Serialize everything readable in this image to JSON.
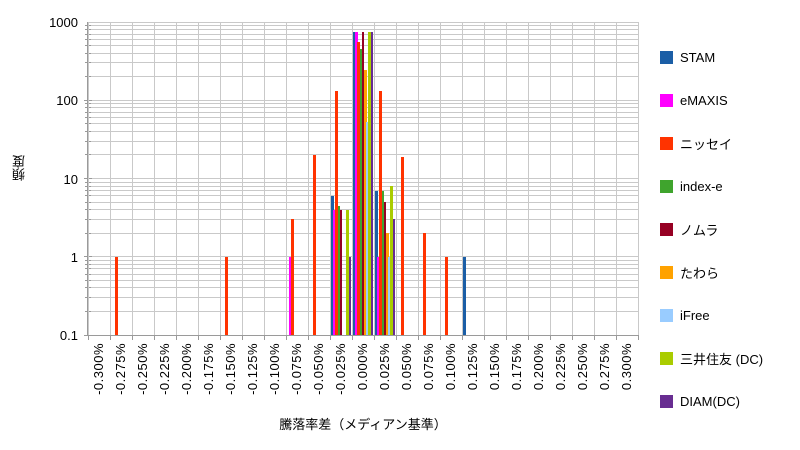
{
  "chart_data": {
    "type": "bar",
    "subtype": "histogram",
    "scale_y": "log10",
    "title": "",
    "xlabel": "騰落率差（メディアン基準）",
    "ylabel": "頻度",
    "ylim": [
      0.1,
      1000
    ],
    "y_ticks": [
      "1000",
      "100",
      "10",
      "1",
      "0.1"
    ],
    "grid": "major and minor log gridlines, vertical category gridlines",
    "legend_position": "right",
    "categories": [
      "-0.300%",
      "-0.275%",
      "-0.250%",
      "-0.225%",
      "-0.200%",
      "-0.175%",
      "-0.150%",
      "-0.125%",
      "-0.100%",
      "-0.075%",
      "-0.050%",
      "-0.025%",
      "0.000%",
      "0.025%",
      "0.050%",
      "0.075%",
      "0.100%",
      "0.125%",
      "0.150%",
      "0.175%",
      "0.200%",
      "0.225%",
      "0.250%",
      "0.275%",
      "0.300%"
    ],
    "series": [
      {
        "name": "STAM",
        "color": "#1B5EA6",
        "values": [
          0,
          0,
          0,
          0,
          0,
          0,
          0,
          0,
          0,
          0,
          0,
          6,
          750,
          7,
          0,
          0,
          0,
          1,
          0,
          0,
          0,
          0,
          0,
          0,
          0
        ]
      },
      {
        "name": "eMAXIS",
        "color": "#FF00FF",
        "values": [
          0,
          0,
          0,
          0,
          0,
          0,
          0,
          0,
          0,
          1,
          0,
          4,
          750,
          1,
          0,
          0,
          0,
          0,
          0,
          0,
          0,
          0,
          0,
          0,
          0
        ]
      },
      {
        "name": "ニッセイ",
        "color": "#FF3300",
        "values": [
          0,
          1,
          0,
          0,
          0,
          0,
          1,
          0,
          0,
          3,
          20,
          130,
          550,
          130,
          19,
          2,
          1,
          0,
          0,
          0,
          0,
          0,
          0,
          0,
          0
        ]
      },
      {
        "name": "index-e",
        "color": "#3FA42D",
        "values": [
          0,
          0,
          0,
          0,
          0,
          0,
          0,
          0,
          0,
          0,
          0,
          4.5,
          450,
          7,
          0,
          0,
          0,
          0,
          0,
          0,
          0,
          0,
          0,
          0,
          0
        ]
      },
      {
        "name": "ノムラ",
        "color": "#960023",
        "values": [
          0,
          0,
          0,
          0,
          0,
          0,
          0,
          0,
          0,
          0,
          0,
          4,
          750,
          5,
          0,
          0,
          0,
          0,
          0,
          0,
          0,
          0,
          0,
          0,
          0
        ]
      },
      {
        "name": "たわら",
        "color": "#FFA200",
        "values": [
          0,
          0,
          0,
          0,
          0,
          0,
          0,
          0,
          0,
          0,
          0,
          0,
          240,
          2,
          0,
          0,
          0,
          0,
          0,
          0,
          0,
          0,
          0,
          0,
          0
        ]
      },
      {
        "name": "iFree",
        "color": "#99CCFF",
        "values": [
          0,
          0,
          0,
          0,
          0,
          0,
          0,
          0,
          0,
          0,
          0,
          0,
          53,
          1,
          0,
          0,
          0,
          0,
          0,
          0,
          0,
          0,
          0,
          0,
          0
        ]
      },
      {
        "name": "三井住友 (DC)",
        "color": "#AACC00",
        "values": [
          0,
          0,
          0,
          0,
          0,
          0,
          0,
          0,
          0,
          0,
          0,
          4,
          750,
          8,
          0,
          0,
          0,
          0,
          0,
          0,
          0,
          0,
          0,
          0,
          0
        ]
      },
      {
        "name": "DIAM(DC)",
        "color": "#682D91",
        "values": [
          0,
          0,
          0,
          0,
          0,
          0,
          0,
          0,
          0,
          0,
          0,
          1,
          750,
          3,
          0,
          0,
          0,
          0,
          0,
          0,
          0,
          0,
          0,
          0,
          0
        ]
      }
    ]
  }
}
